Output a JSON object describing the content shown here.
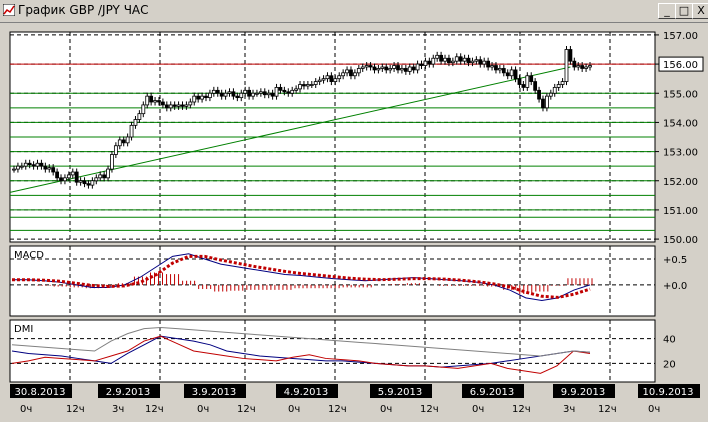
{
  "window": {
    "title": "График GBP /JPY  ЧАС",
    "buttons": {
      "minimize": "_",
      "maximize": "□",
      "close": "X"
    }
  },
  "chart_data": [
    {
      "type": "candlestick",
      "title": "",
      "price_ticks": [
        "157.00",
        "156.00",
        "155.00",
        "154.00",
        "153.00",
        "152.00",
        "151.00",
        "150.00"
      ],
      "current_price": "156.00",
      "ylim": [
        149.9,
        157.1
      ],
      "horizontal_levels": [
        156.0,
        155.0,
        154.5,
        154.0,
        153.5,
        153.0,
        152.5,
        152.0,
        151.5,
        151.0,
        150.75,
        150.3
      ],
      "trendline": {
        "from": {
          "x": 0,
          "y": 151.6
        },
        "to": {
          "x": 142,
          "y": 155.9
        }
      },
      "closes": [
        152.4,
        152.5,
        152.5,
        152.6,
        152.55,
        152.5,
        152.6,
        152.5,
        152.4,
        152.45,
        152.3,
        152.1,
        152.0,
        152.1,
        152.2,
        152.3,
        151.95,
        152.0,
        151.9,
        151.85,
        152.0,
        152.1,
        152.2,
        152.1,
        152.4,
        152.9,
        153.2,
        153.4,
        153.3,
        153.5,
        153.9,
        154.1,
        154.3,
        154.6,
        154.9,
        154.7,
        154.75,
        154.7,
        154.6,
        154.5,
        154.6,
        154.55,
        154.6,
        154.55,
        154.6,
        154.7,
        154.9,
        154.8,
        154.9,
        154.85,
        155.0,
        155.1,
        155.0,
        154.9,
        155.0,
        155.05,
        154.9,
        154.85,
        155.0,
        155.1,
        154.9,
        155.0,
        155.0,
        155.05,
        154.95,
        155.0,
        154.9,
        155.2,
        155.1,
        155.05,
        155.0,
        155.1,
        155.15,
        155.3,
        155.25,
        155.3,
        155.3,
        155.4,
        155.45,
        155.5,
        155.6,
        155.4,
        155.5,
        155.6,
        155.7,
        155.8,
        155.6,
        155.7,
        155.85,
        155.9,
        155.95,
        155.9,
        155.8,
        155.85,
        155.9,
        155.8,
        155.85,
        155.95,
        155.8,
        155.85,
        155.75,
        155.9,
        155.8,
        156.0,
        155.95,
        156.1,
        156.0,
        156.2,
        156.3,
        156.1,
        156.2,
        156.05,
        156.1,
        156.25,
        156.1,
        156.2,
        156.05,
        156.1,
        156.15,
        156.0,
        156.1,
        155.9,
        155.95,
        155.8,
        155.85,
        155.7,
        155.6,
        155.8,
        155.5,
        155.3,
        155.2,
        155.6,
        155.4,
        155.1,
        154.8,
        154.5,
        154.9,
        155.0,
        155.2,
        155.3,
        155.4,
        156.5,
        156.1,
        155.9,
        155.95,
        155.85,
        155.9,
        155.95
      ]
    },
    {
      "type": "line",
      "title": "MACD",
      "tick_labels": [
        "+0.5",
        "+0.0"
      ],
      "ylim": [
        -0.6,
        0.75
      ],
      "series": [
        {
          "name": "",
          "values": [
            0.1,
            0.1,
            0.08,
            0.05,
            0.0,
            -0.05,
            -0.05,
            0.0,
            0.15,
            0.35,
            0.55,
            0.6,
            0.5,
            0.4,
            0.35,
            0.3,
            0.25,
            0.2,
            0.18,
            0.15,
            0.12,
            0.1,
            0.08,
            0.1,
            0.12,
            0.14,
            0.12,
            0.1,
            0.08,
            0.05,
            0.0,
            -0.1,
            -0.25,
            -0.3,
            -0.25,
            -0.1,
            0.0
          ]
        },
        {
          "name": "",
          "values": [
            0.1,
            0.1,
            0.09,
            0.07,
            0.03,
            -0.01,
            -0.03,
            -0.02,
            0.05,
            0.2,
            0.42,
            0.55,
            0.55,
            0.48,
            0.42,
            0.36,
            0.31,
            0.26,
            0.22,
            0.19,
            0.16,
            0.13,
            0.11,
            0.1,
            0.11,
            0.12,
            0.12,
            0.11,
            0.09,
            0.06,
            0.02,
            -0.04,
            -0.14,
            -0.22,
            -0.24,
            -0.18,
            -0.08
          ]
        }
      ]
    },
    {
      "type": "line",
      "title": "DMI",
      "tick_labels": [
        "40",
        "20"
      ],
      "ylim": [
        5,
        55
      ],
      "series": [
        {
          "name": "",
          "values": [
            30,
            28,
            27,
            26,
            24,
            22,
            20,
            28,
            35,
            42,
            40,
            38,
            35,
            30,
            28,
            26,
            25,
            24,
            23,
            22,
            22,
            21,
            20,
            19,
            18,
            18,
            17,
            18,
            19,
            20,
            22,
            24,
            26,
            28,
            30,
            29
          ]
        },
        {
          "name": "",
          "values": [
            20,
            22,
            25,
            24,
            23,
            22,
            26,
            30,
            38,
            42,
            36,
            30,
            28,
            26,
            24,
            23,
            22,
            25,
            27,
            24,
            23,
            22,
            20,
            19,
            18,
            18,
            17,
            16,
            18,
            20,
            16,
            14,
            12,
            18,
            30,
            28
          ]
        },
        {
          "name": "",
          "values": [
            35,
            34,
            33,
            32,
            31,
            30,
            38,
            44,
            48,
            49,
            48,
            47,
            46,
            45,
            44,
            43,
            42,
            41,
            40,
            39,
            38,
            37,
            36,
            35,
            34,
            33,
            32,
            31,
            30,
            29,
            28,
            27,
            26,
            28,
            30,
            29
          ]
        }
      ]
    }
  ],
  "time_axis": {
    "dates": [
      "30.8.2013",
      "2.9.2013",
      "3.9.2013",
      "4.9.2013",
      "5.9.2013",
      "6.9.2013",
      "9.9.2013",
      "10.9.2013"
    ],
    "hours": [
      [
        "0ч",
        "12ч"
      ],
      [
        "3ч",
        "12ч"
      ],
      [
        "0ч",
        "12ч"
      ],
      [
        "0ч",
        "12ч"
      ],
      [
        "0ч",
        "12ч"
      ],
      [
        "0ч",
        "12ч"
      ],
      [
        "3ч",
        "12ч"
      ],
      [
        "0ч",
        ""
      ]
    ]
  }
}
